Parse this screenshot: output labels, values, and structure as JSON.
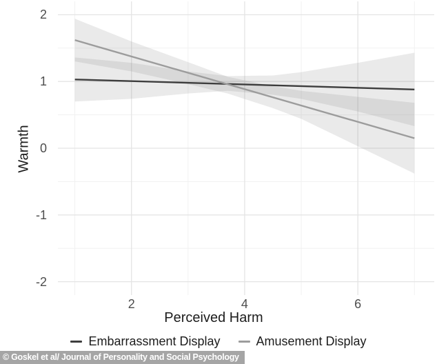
{
  "figure": {
    "background": "#ffffff"
  },
  "chart_data": {
    "type": "line",
    "title": "",
    "xlabel": "Perceived Harm",
    "ylabel": "Warmth",
    "xlim": [
      0.7,
      7.35
    ],
    "ylim": [
      -2.2,
      2.2
    ],
    "x_major_ticks": [
      2,
      4,
      6
    ],
    "x_minor_ticks": [
      1,
      3,
      5,
      7
    ],
    "y_major_ticks": [
      2,
      1,
      0,
      -1,
      -2
    ],
    "y_minor_ticks": [
      1.5,
      0.5,
      -0.5,
      -1.5
    ],
    "grid": "major+minor",
    "grid_major_color": "#e4e4e4",
    "grid_minor_color": "#f1f1f1",
    "band_fill": "rgba(125,125,125,0.16)",
    "tick_label_color": "#4d4d4d",
    "axis_title_color": "#1c1c1c",
    "legend_position": "bottom",
    "series": [
      {
        "name": "Embarrassment Display",
        "color": "#3d3d3d",
        "x": [
          1,
          7
        ],
        "y": [
          1.03,
          0.88
        ],
        "ci_x": [
          1,
          2,
          3,
          3.7,
          4.5,
          5,
          6,
          7
        ],
        "ci_upper": [
          1.36,
          1.28,
          1.15,
          1.08,
          1.09,
          1.14,
          1.28,
          1.43
        ],
        "ci_lower": [
          0.7,
          0.74,
          0.82,
          0.86,
          0.8,
          0.74,
          0.55,
          0.33
        ]
      },
      {
        "name": "Amusement Display",
        "color": "#9c9c9c",
        "x": [
          1,
          7
        ],
        "y": [
          1.62,
          0.15
        ],
        "ci_x": [
          1,
          2,
          3,
          3.7,
          4.5,
          5,
          6,
          7
        ],
        "ci_upper": [
          1.94,
          1.6,
          1.29,
          1.07,
          0.93,
          0.86,
          0.77,
          0.68
        ],
        "ci_lower": [
          1.3,
          1.15,
          0.96,
          0.82,
          0.6,
          0.44,
          0.03,
          -0.38
        ]
      }
    ]
  },
  "caption": {
    "text": "© Goskel et al/ Journal of Personality and Social Psychology",
    "background": "#a5a5a5",
    "text_color": "#ffffff"
  }
}
